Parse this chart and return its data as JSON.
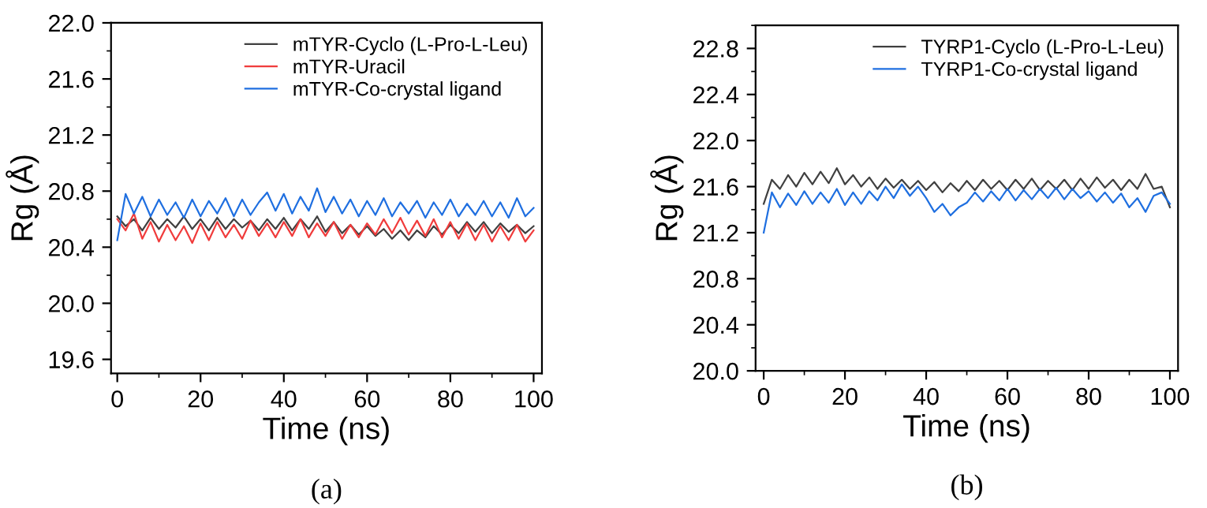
{
  "chart_data": [
    {
      "type": "line",
      "xlabel": "Time (ns)",
      "ylabel": "Rg (Å)",
      "xlim": [
        -1.5,
        102
      ],
      "ylim": [
        19.5,
        22.0
      ],
      "xticks": [
        0,
        20,
        40,
        60,
        80,
        100
      ],
      "yticks": [
        {
          "value": 19.6,
          "label": "19.6"
        },
        {
          "value": 20.0,
          "label": "20.0"
        },
        {
          "value": 20.4,
          "label": "20.4"
        },
        {
          "value": 20.8,
          "label": "20.8"
        },
        {
          "value": 21.2,
          "label": "21.2"
        },
        {
          "value": 21.6,
          "label": "21.6"
        },
        {
          "value": 22.0,
          "label": "22.0"
        }
      ],
      "legend": "top right",
      "grid": false,
      "annotations": [
        "(a)"
      ],
      "x": [
        0,
        2,
        4,
        6,
        8,
        10,
        12,
        14,
        16,
        18,
        20,
        22,
        24,
        26,
        28,
        30,
        32,
        34,
        36,
        38,
        40,
        42,
        44,
        46,
        48,
        50,
        52,
        54,
        56,
        58,
        60,
        62,
        64,
        66,
        68,
        70,
        72,
        74,
        76,
        78,
        80,
        82,
        84,
        86,
        88,
        90,
        92,
        94,
        96,
        98,
        100
      ],
      "series": [
        {
          "name": "mTYR-Cyclo (L-Pro-L-Leu)",
          "color": "#404040",
          "values": [
            20.62,
            20.55,
            20.6,
            20.52,
            20.61,
            20.53,
            20.6,
            20.54,
            20.62,
            20.53,
            20.6,
            20.52,
            20.61,
            20.53,
            20.6,
            20.54,
            20.59,
            20.52,
            20.6,
            20.53,
            20.61,
            20.52,
            20.6,
            20.53,
            20.62,
            20.51,
            20.58,
            20.5,
            20.56,
            20.49,
            20.55,
            20.48,
            20.53,
            20.46,
            20.52,
            20.45,
            20.52,
            20.47,
            20.55,
            20.49,
            20.56,
            20.5,
            20.58,
            20.51,
            20.58,
            20.5,
            20.57,
            20.51,
            20.56,
            20.5,
            20.55
          ]
        },
        {
          "name": "mTYR-Uracil",
          "color": "#f03c3c",
          "values": [
            20.6,
            20.52,
            20.64,
            20.46,
            20.58,
            20.44,
            20.56,
            20.45,
            20.55,
            20.43,
            20.57,
            20.45,
            20.58,
            20.47,
            20.56,
            20.46,
            20.59,
            20.48,
            20.57,
            20.47,
            20.58,
            20.48,
            20.6,
            20.47,
            20.57,
            20.48,
            20.58,
            20.46,
            20.56,
            20.47,
            20.57,
            20.49,
            20.6,
            20.5,
            20.61,
            20.49,
            20.59,
            20.48,
            20.6,
            20.47,
            20.58,
            20.46,
            20.57,
            20.45,
            20.56,
            20.44,
            20.55,
            20.45,
            20.56,
            20.44,
            20.52
          ]
        },
        {
          "name": "mTYR-Co-crystal ligand",
          "color": "#1f6fe0",
          "values": [
            20.45,
            20.78,
            20.64,
            20.76,
            20.62,
            20.74,
            20.63,
            20.72,
            20.61,
            20.74,
            20.62,
            20.73,
            20.64,
            20.75,
            20.62,
            20.74,
            20.63,
            20.72,
            20.79,
            20.66,
            20.78,
            20.64,
            20.76,
            20.66,
            20.82,
            20.65,
            20.76,
            20.64,
            20.74,
            20.62,
            20.73,
            20.63,
            20.75,
            20.62,
            20.72,
            20.64,
            20.73,
            20.61,
            20.72,
            20.63,
            20.74,
            20.62,
            20.71,
            20.63,
            20.73,
            20.62,
            20.72,
            20.61,
            20.75,
            20.62,
            20.68
          ]
        }
      ]
    },
    {
      "type": "line",
      "xlabel": "Time (ns)",
      "ylabel": "Rg (Å)",
      "xlim": [
        -2,
        102
      ],
      "ylim": [
        20.0,
        23.0
      ],
      "xticks": [
        0,
        20,
        40,
        60,
        80,
        100
      ],
      "yticks": [
        {
          "value": 20.0,
          "label": "20.0"
        },
        {
          "value": 20.4,
          "label": "20.4"
        },
        {
          "value": 20.8,
          "label": "20.8"
        },
        {
          "value": 21.2,
          "label": "21.2"
        },
        {
          "value": 21.6,
          "label": "21.6"
        },
        {
          "value": 22.0,
          "label": "22.0"
        },
        {
          "value": 22.4,
          "label": "22.4"
        },
        {
          "value": 22.8,
          "label": "22.8"
        }
      ],
      "legend": "top right",
      "grid": false,
      "annotations": [
        "(b)"
      ],
      "x": [
        0,
        2,
        4,
        6,
        8,
        10,
        12,
        14,
        16,
        18,
        20,
        22,
        24,
        26,
        28,
        30,
        32,
        34,
        36,
        38,
        40,
        42,
        44,
        46,
        48,
        50,
        52,
        54,
        56,
        58,
        60,
        62,
        64,
        66,
        68,
        70,
        72,
        74,
        76,
        78,
        80,
        82,
        84,
        86,
        88,
        90,
        92,
        94,
        96,
        98,
        100
      ],
      "series": [
        {
          "name": "TYRP1-Cyclo (L-Pro-L-Leu)",
          "color": "#404040",
          "values": [
            21.45,
            21.66,
            21.58,
            21.7,
            21.6,
            21.72,
            21.62,
            21.73,
            21.63,
            21.76,
            21.62,
            21.7,
            21.6,
            21.68,
            21.58,
            21.67,
            21.59,
            21.66,
            21.58,
            21.65,
            21.57,
            21.64,
            21.55,
            21.63,
            21.56,
            21.65,
            21.57,
            21.66,
            21.58,
            21.65,
            21.57,
            21.66,
            21.58,
            21.67,
            21.57,
            21.65,
            21.58,
            21.66,
            21.57,
            21.67,
            21.58,
            21.68,
            21.59,
            21.66,
            21.57,
            21.66,
            21.58,
            21.71,
            21.58,
            21.6,
            21.42
          ]
        },
        {
          "name": "TYRP1-Co-crystal ligand",
          "color": "#1f6fe0",
          "values": [
            21.2,
            21.55,
            21.42,
            21.54,
            21.44,
            21.56,
            21.45,
            21.55,
            21.46,
            21.58,
            21.44,
            21.55,
            21.45,
            21.56,
            21.48,
            21.6,
            21.5,
            21.62,
            21.52,
            21.6,
            21.5,
            21.38,
            21.45,
            21.35,
            21.42,
            21.46,
            21.55,
            21.47,
            21.56,
            21.48,
            21.58,
            21.48,
            21.57,
            21.49,
            21.58,
            21.5,
            21.59,
            21.49,
            21.58,
            21.5,
            21.56,
            21.47,
            21.55,
            21.46,
            21.54,
            21.42,
            21.5,
            21.38,
            21.52,
            21.55,
            21.45
          ]
        }
      ]
    }
  ]
}
